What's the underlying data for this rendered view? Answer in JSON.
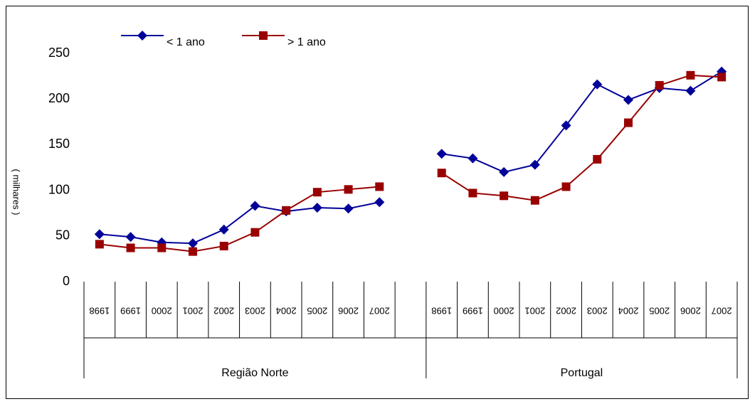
{
  "chart_data": {
    "type": "line",
    "y_label": "( milhares )",
    "groups": [
      "Região Norte",
      "Portugal"
    ],
    "categories": [
      "1998",
      "1999",
      "2000",
      "2001",
      "2002",
      "2003",
      "2004",
      "2005",
      "2006",
      "2007",
      null,
      "1998",
      "1999",
      "2000",
      "2001",
      "2002",
      "2003",
      "2004",
      "2005",
      "2006",
      "2007"
    ],
    "series": [
      {
        "name": "< 1 ano",
        "color": "#000099",
        "marker": "diamond",
        "values": [
          52,
          49,
          43,
          42,
          57,
          83,
          77,
          81,
          80,
          87,
          null,
          140,
          135,
          120,
          128,
          171,
          216,
          199,
          212,
          209,
          230
        ]
      },
      {
        "name": "> 1 ano",
        "color": "#990000",
        "marker": "square",
        "values": [
          41,
          37,
          37,
          33,
          39,
          54,
          78,
          98,
          101,
          104,
          null,
          119,
          97,
          94,
          89,
          104,
          134,
          174,
          215,
          226,
          224
        ]
      }
    ],
    "ylim": [
      0,
      250
    ],
    "yticks": [
      0,
      50,
      100,
      150,
      200,
      250
    ]
  }
}
